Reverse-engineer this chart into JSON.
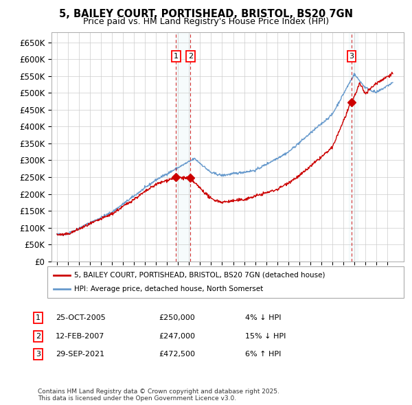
{
  "title": "5, BAILEY COURT, PORTISHEAD, BRISTOL, BS20 7GN",
  "subtitle": "Price paid vs. HM Land Registry's House Price Index (HPI)",
  "sale_color": "#cc0000",
  "hpi_color": "#6699cc",
  "background_color": "#ffffff",
  "grid_color": "#cccccc",
  "ylim": [
    0,
    680000
  ],
  "yticks": [
    0,
    50000,
    100000,
    150000,
    200000,
    250000,
    300000,
    350000,
    400000,
    450000,
    500000,
    550000,
    600000,
    650000
  ],
  "sales": [
    {
      "date_num": 2005.82,
      "price": 250000,
      "label": "1"
    },
    {
      "date_num": 2007.12,
      "price": 247000,
      "label": "2"
    },
    {
      "date_num": 2021.75,
      "price": 472500,
      "label": "3"
    }
  ],
  "vline_dates": [
    2005.82,
    2007.12,
    2021.75
  ],
  "legend_sale_label": "5, BAILEY COURT, PORTISHEAD, BRISTOL, BS20 7GN (detached house)",
  "legend_hpi_label": "HPI: Average price, detached house, North Somerset",
  "table_entries": [
    {
      "num": "1",
      "date": "25-OCT-2005",
      "price": "£250,000",
      "change": "4% ↓ HPI"
    },
    {
      "num": "2",
      "date": "12-FEB-2007",
      "price": "£247,000",
      "change": "15% ↓ HPI"
    },
    {
      "num": "3",
      "date": "29-SEP-2021",
      "price": "£472,500",
      "change": "6% ↑ HPI"
    }
  ],
  "footer": "Contains HM Land Registry data © Crown copyright and database right 2025.\nThis data is licensed under the Open Government Licence v3.0.",
  "xmin": 1994.5,
  "xmax": 2026.5
}
